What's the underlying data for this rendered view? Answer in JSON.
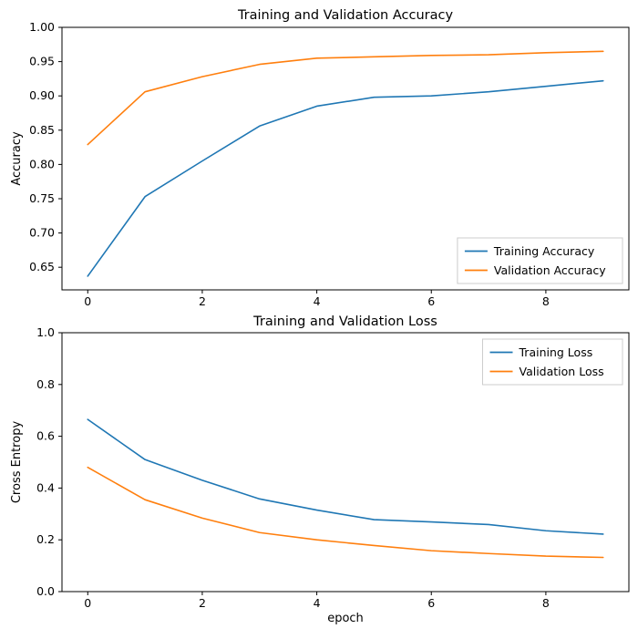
{
  "figure": {
    "background": "#ffffff",
    "axis_color": "#000000",
    "legend_border_color": "#cccccc"
  },
  "chart_data": [
    {
      "type": "line",
      "title": "Training and Validation Accuracy",
      "xlabel": "",
      "ylabel": "Accuracy",
      "x": [
        0,
        1,
        2,
        3,
        4,
        5,
        6,
        7,
        8,
        9
      ],
      "series": [
        {
          "name": "Training Accuracy",
          "color": "#1f77b4",
          "values": [
            0.637,
            0.753,
            0.805,
            0.856,
            0.885,
            0.898,
            0.9,
            0.906,
            0.914,
            0.922
          ]
        },
        {
          "name": "Validation Accuracy",
          "color": "#ff7f0e",
          "values": [
            0.829,
            0.906,
            0.928,
            0.946,
            0.955,
            0.957,
            0.959,
            0.96,
            0.963,
            0.965
          ]
        }
      ],
      "xlim": [
        -0.45,
        9.45
      ],
      "ylim": [
        0.617,
        1.0
      ],
      "xticks": [
        0,
        2,
        4,
        6,
        8
      ],
      "yticks": [
        0.65,
        0.7,
        0.75,
        0.8,
        0.85,
        0.9,
        0.95,
        1.0
      ],
      "ytick_labels": [
        "0.65",
        "0.70",
        "0.75",
        "0.80",
        "0.85",
        "0.90",
        "0.95",
        "1.00"
      ],
      "xtick_labels": [
        "0",
        "2",
        "4",
        "6",
        "8"
      ],
      "grid": false,
      "legend": {
        "loc": "lower right",
        "labels": [
          "Training Accuracy",
          "Validation Accuracy"
        ]
      }
    },
    {
      "type": "line",
      "title": "Training and Validation Loss",
      "xlabel": "epoch",
      "ylabel": "Cross Entropy",
      "x": [
        0,
        1,
        2,
        3,
        4,
        5,
        6,
        7,
        8,
        9
      ],
      "series": [
        {
          "name": "Training Loss",
          "color": "#1f77b4",
          "values": [
            0.665,
            0.51,
            0.43,
            0.358,
            0.315,
            0.278,
            0.269,
            0.259,
            0.235,
            0.222
          ]
        },
        {
          "name": "Validation Loss",
          "color": "#ff7f0e",
          "values": [
            0.48,
            0.355,
            0.284,
            0.228,
            0.2,
            0.178,
            0.158,
            0.147,
            0.137,
            0.132
          ]
        }
      ],
      "xlim": [
        -0.45,
        9.45
      ],
      "ylim": [
        0.0,
        1.0
      ],
      "xticks": [
        0,
        2,
        4,
        6,
        8
      ],
      "yticks": [
        0.0,
        0.2,
        0.4,
        0.6,
        0.8,
        1.0
      ],
      "ytick_labels": [
        "0.0",
        "0.2",
        "0.4",
        "0.6",
        "0.8",
        "1.0"
      ],
      "xtick_labels": [
        "0",
        "2",
        "4",
        "6",
        "8"
      ],
      "grid": false,
      "legend": {
        "loc": "upper right",
        "labels": [
          "Training Loss",
          "Validation Loss"
        ]
      }
    }
  ]
}
